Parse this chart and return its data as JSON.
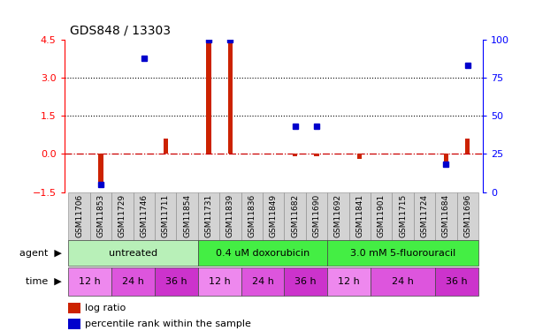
{
  "title": "GDS848 / 13303",
  "samples": [
    "GSM11706",
    "GSM11853",
    "GSM11729",
    "GSM11746",
    "GSM11711",
    "GSM11854",
    "GSM11731",
    "GSM11839",
    "GSM11836",
    "GSM11849",
    "GSM11682",
    "GSM11690",
    "GSM11692",
    "GSM11841",
    "GSM11901",
    "GSM11715",
    "GSM11724",
    "GSM11684",
    "GSM11696"
  ],
  "log_ratio": [
    0,
    -1.1,
    0,
    0,
    0.6,
    0,
    4.35,
    4.35,
    0,
    0,
    -0.08,
    -0.08,
    0,
    -0.18,
    0,
    0,
    0,
    -0.55,
    0.6
  ],
  "pct_rank": [
    0,
    5,
    0,
    88,
    0,
    0,
    100,
    100,
    0,
    0,
    43,
    43,
    0,
    0,
    0,
    0,
    0,
    18,
    83
  ],
  "agents": [
    {
      "label": "untreated",
      "start": 0,
      "end": 6,
      "color": "#b8f0b8"
    },
    {
      "label": "0.4 uM doxorubicin",
      "start": 6,
      "end": 12,
      "color": "#44ee44"
    },
    {
      "label": "3.0 mM 5-fluorouracil",
      "start": 12,
      "end": 19,
      "color": "#44ee44"
    }
  ],
  "time_groups": [
    {
      "label": "12 h",
      "start": 0,
      "end": 2,
      "color": "#ee88ee"
    },
    {
      "label": "24 h",
      "start": 2,
      "end": 4,
      "color": "#dd55dd"
    },
    {
      "label": "36 h",
      "start": 4,
      "end": 6,
      "color": "#cc33cc"
    },
    {
      "label": "12 h",
      "start": 6,
      "end": 8,
      "color": "#ee88ee"
    },
    {
      "label": "24 h",
      "start": 8,
      "end": 10,
      "color": "#dd55dd"
    },
    {
      "label": "36 h",
      "start": 10,
      "end": 12,
      "color": "#cc33cc"
    },
    {
      "label": "12 h",
      "start": 12,
      "end": 14,
      "color": "#ee88ee"
    },
    {
      "label": "24 h",
      "start": 14,
      "end": 17,
      "color": "#dd55dd"
    },
    {
      "label": "36 h",
      "start": 17,
      "end": 19,
      "color": "#cc33cc"
    }
  ],
  "ylim_left": [
    -1.5,
    4.5
  ],
  "ylim_right": [
    0,
    100
  ],
  "yticks_left": [
    -1.5,
    0,
    1.5,
    3,
    4.5
  ],
  "yticks_right": [
    0,
    25,
    50,
    75,
    100
  ],
  "bar_color_red": "#cc2200",
  "bar_color_blue": "#0000cc",
  "sample_bg_color": "#d3d3d3"
}
